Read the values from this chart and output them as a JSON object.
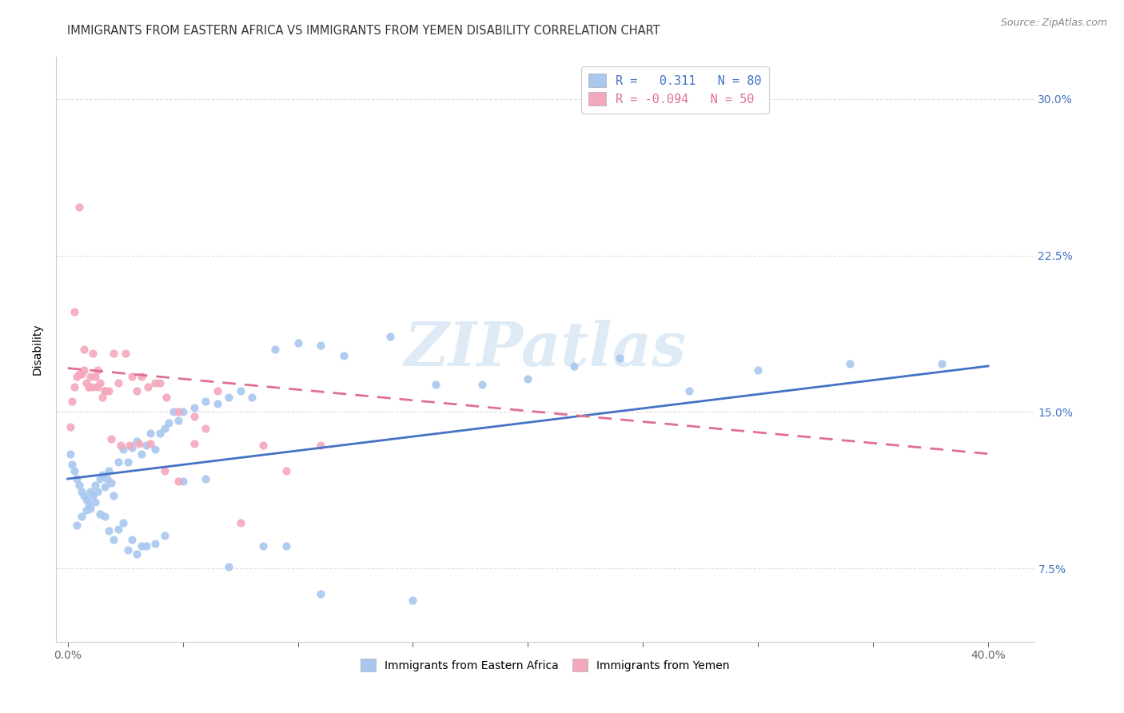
{
  "title": "IMMIGRANTS FROM EASTERN AFRICA VS IMMIGRANTS FROM YEMEN DISABILITY CORRELATION CHART",
  "source": "Source: ZipAtlas.com",
  "ylabel": "Disability",
  "R1": 0.311,
  "N1": 80,
  "R2": -0.094,
  "N2": 50,
  "color_blue": "#A8C8F0",
  "color_pink": "#F4A8BC",
  "color_blue_line": "#4472C4",
  "color_pink_line": "#E07090",
  "legend_label1": "Immigrants from Eastern Africa",
  "legend_label2": "Immigrants from Yemen",
  "watermark": "ZIPatlas",
  "blue_points_x": [
    0.001,
    0.002,
    0.003,
    0.004,
    0.005,
    0.006,
    0.007,
    0.008,
    0.009,
    0.01,
    0.011,
    0.012,
    0.013,
    0.014,
    0.015,
    0.016,
    0.017,
    0.018,
    0.019,
    0.02,
    0.022,
    0.024,
    0.026,
    0.028,
    0.03,
    0.032,
    0.034,
    0.036,
    0.038,
    0.04,
    0.042,
    0.044,
    0.046,
    0.048,
    0.05,
    0.055,
    0.06,
    0.065,
    0.07,
    0.075,
    0.08,
    0.09,
    0.1,
    0.11,
    0.12,
    0.14,
    0.16,
    0.18,
    0.2,
    0.22,
    0.24,
    0.27,
    0.3,
    0.34,
    0.38,
    0.004,
    0.006,
    0.008,
    0.01,
    0.012,
    0.014,
    0.016,
    0.018,
    0.02,
    0.022,
    0.024,
    0.026,
    0.028,
    0.03,
    0.032,
    0.034,
    0.038,
    0.042,
    0.05,
    0.06,
    0.07,
    0.085,
    0.095,
    0.11,
    0.15
  ],
  "blue_points_y": [
    0.13,
    0.125,
    0.122,
    0.118,
    0.115,
    0.112,
    0.11,
    0.108,
    0.106,
    0.112,
    0.11,
    0.115,
    0.112,
    0.118,
    0.12,
    0.114,
    0.118,
    0.122,
    0.116,
    0.11,
    0.126,
    0.132,
    0.126,
    0.133,
    0.136,
    0.13,
    0.134,
    0.14,
    0.132,
    0.14,
    0.142,
    0.145,
    0.15,
    0.146,
    0.15,
    0.152,
    0.155,
    0.154,
    0.157,
    0.16,
    0.157,
    0.18,
    0.183,
    0.182,
    0.177,
    0.186,
    0.163,
    0.163,
    0.166,
    0.172,
    0.176,
    0.16,
    0.17,
    0.173,
    0.173,
    0.096,
    0.1,
    0.103,
    0.104,
    0.107,
    0.101,
    0.1,
    0.093,
    0.089,
    0.094,
    0.097,
    0.084,
    0.089,
    0.082,
    0.086,
    0.086,
    0.087,
    0.091,
    0.117,
    0.118,
    0.076,
    0.086,
    0.086,
    0.063,
    0.06
  ],
  "pink_points_x": [
    0.001,
    0.002,
    0.003,
    0.004,
    0.005,
    0.006,
    0.007,
    0.008,
    0.009,
    0.01,
    0.011,
    0.012,
    0.013,
    0.014,
    0.015,
    0.016,
    0.018,
    0.02,
    0.022,
    0.025,
    0.028,
    0.03,
    0.032,
    0.035,
    0.038,
    0.04,
    0.043,
    0.048,
    0.055,
    0.06,
    0.003,
    0.005,
    0.007,
    0.009,
    0.011,
    0.013,
    0.016,
    0.019,
    0.023,
    0.027,
    0.031,
    0.036,
    0.042,
    0.048,
    0.055,
    0.065,
    0.075,
    0.085,
    0.095,
    0.11
  ],
  "pink_points_y": [
    0.143,
    0.155,
    0.162,
    0.167,
    0.168,
    0.168,
    0.17,
    0.164,
    0.162,
    0.167,
    0.162,
    0.167,
    0.162,
    0.164,
    0.157,
    0.16,
    0.16,
    0.178,
    0.164,
    0.178,
    0.167,
    0.16,
    0.167,
    0.162,
    0.164,
    0.164,
    0.157,
    0.15,
    0.148,
    0.142,
    0.198,
    0.248,
    0.18,
    0.162,
    0.178,
    0.17,
    0.16,
    0.137,
    0.134,
    0.134,
    0.135,
    0.135,
    0.122,
    0.117,
    0.135,
    0.16,
    0.097,
    0.134,
    0.122,
    0.134
  ],
  "blue_trend": [
    0.0,
    0.4,
    0.118,
    0.172
  ],
  "pink_trend": [
    0.0,
    0.4,
    0.171,
    0.13
  ],
  "xlim": [
    -0.005,
    0.42
  ],
  "ylim": [
    0.04,
    0.32
  ],
  "yticks": [
    0.075,
    0.15,
    0.225,
    0.3
  ],
  "ytick_labels": [
    "7.5%",
    "15.0%",
    "22.5%",
    "30.0%"
  ],
  "xtick_positions": [
    0.0,
    0.05,
    0.1,
    0.15,
    0.2,
    0.25,
    0.3,
    0.35,
    0.4
  ],
  "background_color": "#FFFFFF",
  "grid_color": "#DDDDDD",
  "title_color": "#333333",
  "source_color": "#888888",
  "ytick_color": "#4472C4",
  "xtick_edge_color": "#4472C4",
  "title_fontsize": 10.5,
  "tick_fontsize": 10,
  "source_fontsize": 9,
  "legend_fontsize": 11,
  "watermark_fontsize": 55,
  "watermark_color": "#C8DCF0",
  "watermark_alpha": 0.6
}
